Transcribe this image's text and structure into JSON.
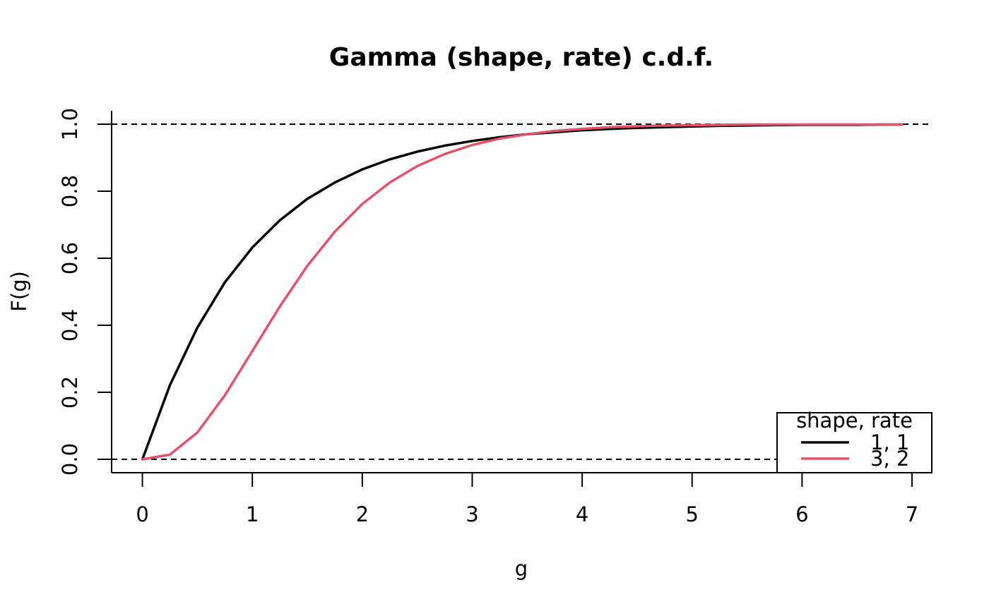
{
  "chart_data": {
    "type": "line",
    "title": "Gamma (shape, rate) c.d.f.",
    "xlabel": "g",
    "ylabel": "F(g)",
    "xlim": [
      -0.28,
      7.18
    ],
    "ylim": [
      -0.04,
      1.04
    ],
    "x_ticks": [
      0,
      1,
      2,
      3,
      4,
      5,
      6,
      7
    ],
    "x_tick_labels": [
      "0",
      "1",
      "2",
      "3",
      "4",
      "5",
      "6",
      "7"
    ],
    "y_ticks": [
      0.0,
      0.2,
      0.4,
      0.6,
      0.8,
      1.0
    ],
    "y_tick_labels": [
      "0.0",
      "0.2",
      "0.4",
      "0.6",
      "0.8",
      "1.0"
    ],
    "reference_lines": [
      0,
      1
    ],
    "grid": false,
    "legend": {
      "title": "shape, rate",
      "position": "bottom-right",
      "entries": [
        "1, 1",
        "3, 2"
      ]
    },
    "series": [
      {
        "name": "1, 1",
        "color": "#000000",
        "x": [
          0,
          0.25,
          0.5,
          0.75,
          1.0,
          1.25,
          1.5,
          1.75,
          2.0,
          2.25,
          2.5,
          2.75,
          3.0,
          3.25,
          3.5,
          3.75,
          4.0,
          4.25,
          4.5,
          4.75,
          5.0,
          5.25,
          5.5,
          5.75,
          6.0,
          6.25,
          6.5,
          6.75,
          6.91
        ],
        "y": [
          0,
          0.221,
          0.393,
          0.528,
          0.632,
          0.713,
          0.777,
          0.826,
          0.865,
          0.895,
          0.918,
          0.936,
          0.95,
          0.961,
          0.97,
          0.976,
          0.982,
          0.986,
          0.989,
          0.991,
          0.993,
          0.995,
          0.996,
          0.997,
          0.998,
          0.998,
          0.998,
          0.999,
          0.999
        ]
      },
      {
        "name": "3, 2",
        "color": "#df536b",
        "x": [
          0,
          0.25,
          0.5,
          0.75,
          1.0,
          1.25,
          1.5,
          1.75,
          2.0,
          2.25,
          2.5,
          2.75,
          3.0,
          3.25,
          3.5,
          3.75,
          4.0,
          4.25,
          4.5,
          4.75,
          5.0,
          5.25,
          5.5,
          5.75,
          6.0,
          6.25,
          6.5,
          6.75,
          6.91
        ],
        "y": [
          0,
          0.014,
          0.08,
          0.191,
          0.323,
          0.456,
          0.577,
          0.679,
          0.762,
          0.826,
          0.875,
          0.911,
          0.938,
          0.957,
          0.97,
          0.98,
          0.986,
          0.991,
          0.994,
          0.996,
          0.997,
          0.998,
          0.999,
          0.999,
          0.999,
          0.999,
          0.999,
          0.999,
          0.999
        ]
      }
    ]
  }
}
